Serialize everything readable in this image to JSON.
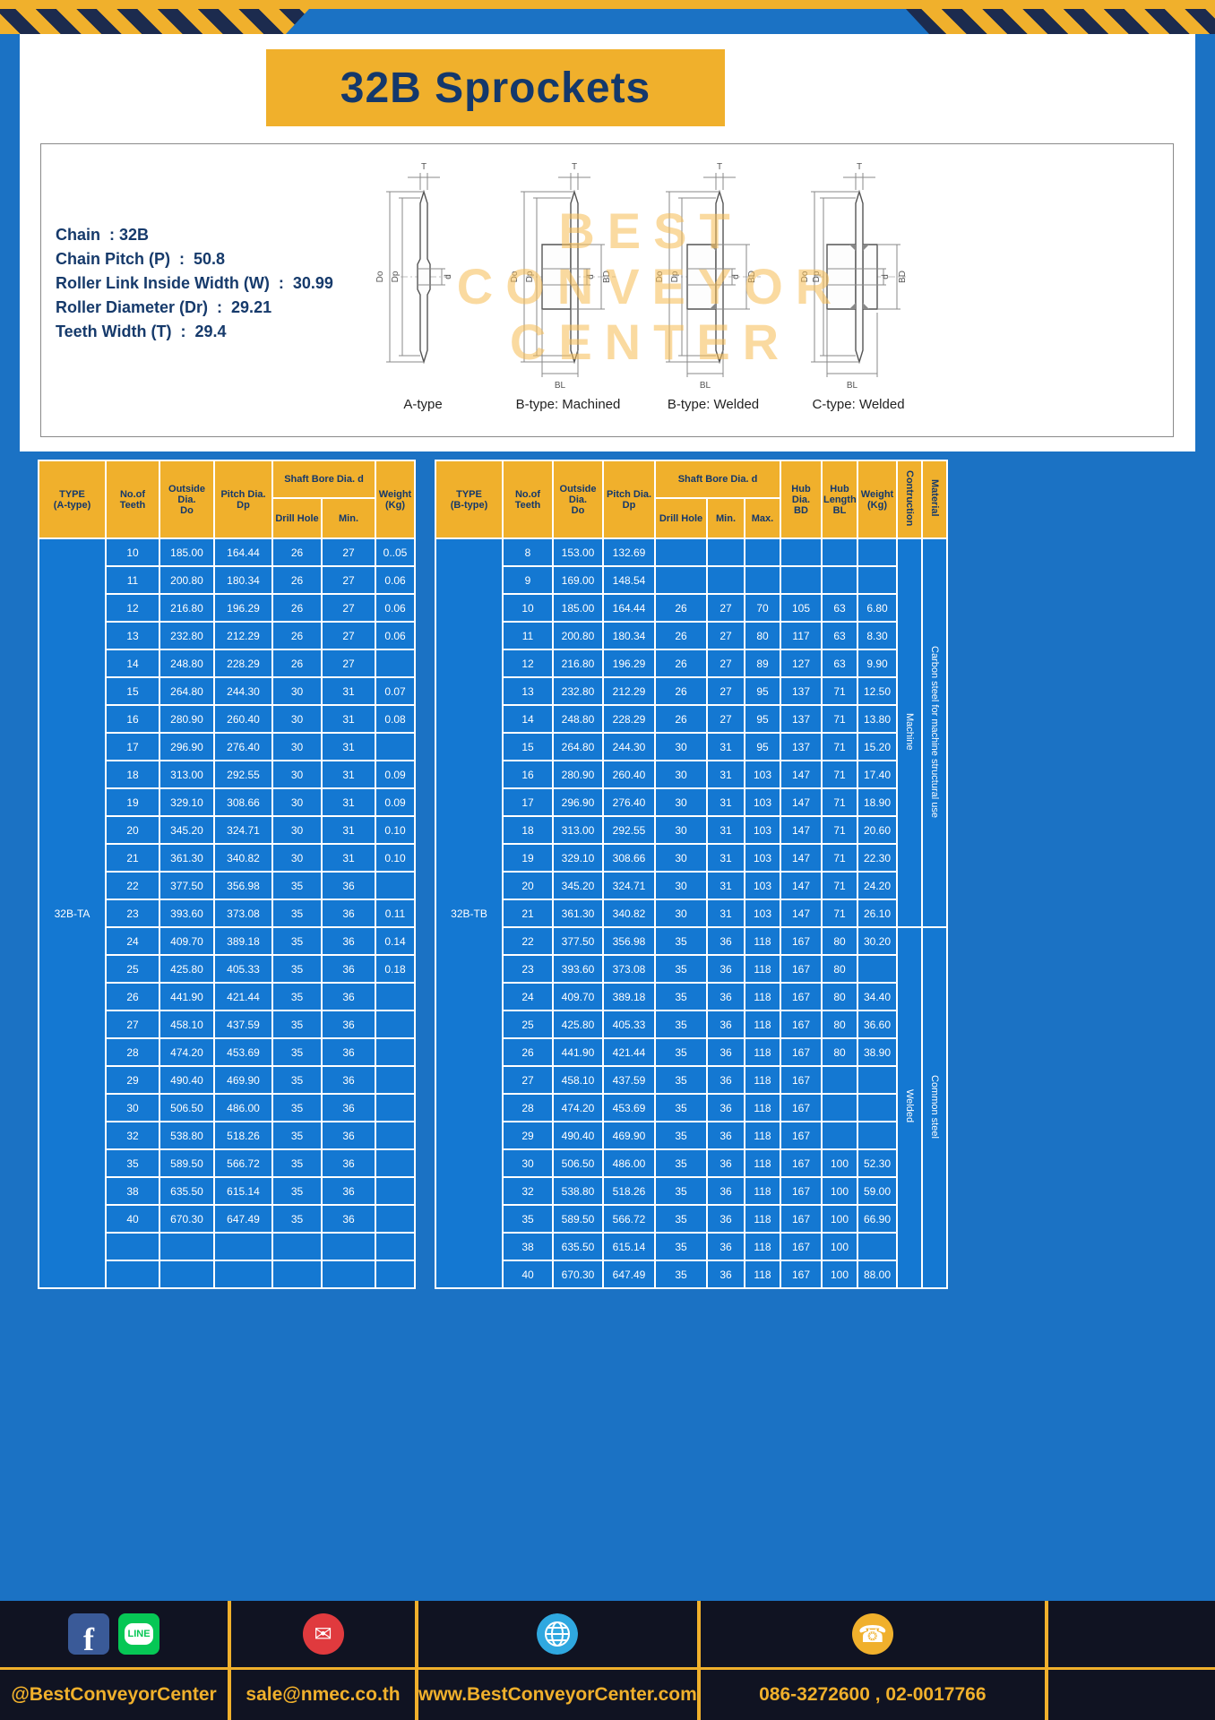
{
  "page": {
    "title": "32B Sprockets"
  },
  "specs": {
    "lines": [
      "Chain  : 32B",
      "Chain Pitch (P)  :  50.8",
      "Roller Link Inside Width (W)  :  30.99",
      "Roller Diameter (Dr)  :  29.21",
      "Teeth Width (T)  :  29.4"
    ]
  },
  "diagrams": {
    "labels": [
      "A-type",
      "B-type: Machined",
      "B-type: Welded",
      "C-type: Welded"
    ],
    "dim_labels": {
      "T": "T",
      "Do": "Do",
      "Dp": "Dp",
      "d": "d",
      "BD": "BD",
      "BL": "BL"
    },
    "watermark": "BEST\nCONVEYOR\nCENTER"
  },
  "table_a": {
    "type_label": "32B-TA",
    "headers": {
      "type": "TYPE\n(A-type)",
      "teeth": "No.of\nTeeth",
      "outside": "Outside\nDia.\nDo",
      "pitch": "Pitch Dia.\nDp",
      "shaft_bore": "Shaft Bore Dia. d",
      "drill_hole": "Drill Hole",
      "min": "Min.",
      "weight": "Weight\n(Kg)"
    },
    "rows": [
      [
        "10",
        "185.00",
        "164.44",
        "26",
        "27",
        "0..05"
      ],
      [
        "11",
        "200.80",
        "180.34",
        "26",
        "27",
        "0.06"
      ],
      [
        "12",
        "216.80",
        "196.29",
        "26",
        "27",
        "0.06"
      ],
      [
        "13",
        "232.80",
        "212.29",
        "26",
        "27",
        "0.06"
      ],
      [
        "14",
        "248.80",
        "228.29",
        "26",
        "27",
        ""
      ],
      [
        "15",
        "264.80",
        "244.30",
        "30",
        "31",
        "0.07"
      ],
      [
        "16",
        "280.90",
        "260.40",
        "30",
        "31",
        "0.08"
      ],
      [
        "17",
        "296.90",
        "276.40",
        "30",
        "31",
        ""
      ],
      [
        "18",
        "313.00",
        "292.55",
        "30",
        "31",
        "0.09"
      ],
      [
        "19",
        "329.10",
        "308.66",
        "30",
        "31",
        "0.09"
      ],
      [
        "20",
        "345.20",
        "324.71",
        "30",
        "31",
        "0.10"
      ],
      [
        "21",
        "361.30",
        "340.82",
        "30",
        "31",
        "0.10"
      ],
      [
        "22",
        "377.50",
        "356.98",
        "35",
        "36",
        ""
      ],
      [
        "23",
        "393.60",
        "373.08",
        "35",
        "36",
        "0.11"
      ],
      [
        "24",
        "409.70",
        "389.18",
        "35",
        "36",
        "0.14"
      ],
      [
        "25",
        "425.80",
        "405.33",
        "35",
        "36",
        "0.18"
      ],
      [
        "26",
        "441.90",
        "421.44",
        "35",
        "36",
        ""
      ],
      [
        "27",
        "458.10",
        "437.59",
        "35",
        "36",
        ""
      ],
      [
        "28",
        "474.20",
        "453.69",
        "35",
        "36",
        ""
      ],
      [
        "29",
        "490.40",
        "469.90",
        "35",
        "36",
        ""
      ],
      [
        "30",
        "506.50",
        "486.00",
        "35",
        "36",
        ""
      ],
      [
        "32",
        "538.80",
        "518.26",
        "35",
        "36",
        ""
      ],
      [
        "35",
        "589.50",
        "566.72",
        "35",
        "36",
        ""
      ],
      [
        "38",
        "635.50",
        "615.14",
        "35",
        "36",
        ""
      ],
      [
        "40",
        "670.30",
        "647.49",
        "35",
        "36",
        ""
      ],
      [
        "",
        "",
        "",
        "",
        "",
        ""
      ],
      [
        "",
        "",
        "",
        "",
        "",
        ""
      ]
    ]
  },
  "table_b": {
    "type_label": "32B-TB",
    "headers": {
      "type": "TYPE\n(B-type)",
      "teeth": "No.of\nTeeth",
      "outside": "Outside\nDia.\nDo",
      "pitch": "Pitch Dia.\nDp",
      "shaft_bore": "Shaft Bore Dia. d",
      "drill_hole": "Drill Hole",
      "min": "Min.",
      "max": "Max.",
      "hub_dia": "Hub Dia.\nBD",
      "hub_length": "Hub\nLength\nBL",
      "weight": "Weight\n(Kg)",
      "construction": "Contruction",
      "material": "Material"
    },
    "rows": [
      [
        "8",
        "153.00",
        "132.69",
        "",
        "",
        "",
        "",
        "",
        ""
      ],
      [
        "9",
        "169.00",
        "148.54",
        "",
        "",
        "",
        "",
        "",
        ""
      ],
      [
        "10",
        "185.00",
        "164.44",
        "26",
        "27",
        "70",
        "105",
        "63",
        "6.80"
      ],
      [
        "11",
        "200.80",
        "180.34",
        "26",
        "27",
        "80",
        "117",
        "63",
        "8.30"
      ],
      [
        "12",
        "216.80",
        "196.29",
        "26",
        "27",
        "89",
        "127",
        "63",
        "9.90"
      ],
      [
        "13",
        "232.80",
        "212.29",
        "26",
        "27",
        "95",
        "137",
        "71",
        "12.50"
      ],
      [
        "14",
        "248.80",
        "228.29",
        "26",
        "27",
        "95",
        "137",
        "71",
        "13.80"
      ],
      [
        "15",
        "264.80",
        "244.30",
        "30",
        "31",
        "95",
        "137",
        "71",
        "15.20"
      ],
      [
        "16",
        "280.90",
        "260.40",
        "30",
        "31",
        "103",
        "147",
        "71",
        "17.40"
      ],
      [
        "17",
        "296.90",
        "276.40",
        "30",
        "31",
        "103",
        "147",
        "71",
        "18.90"
      ],
      [
        "18",
        "313.00",
        "292.55",
        "30",
        "31",
        "103",
        "147",
        "71",
        "20.60"
      ],
      [
        "19",
        "329.10",
        "308.66",
        "30",
        "31",
        "103",
        "147",
        "71",
        "22.30"
      ],
      [
        "20",
        "345.20",
        "324.71",
        "30",
        "31",
        "103",
        "147",
        "71",
        "24.20"
      ],
      [
        "21",
        "361.30",
        "340.82",
        "30",
        "31",
        "103",
        "147",
        "71",
        "26.10"
      ],
      [
        "22",
        "377.50",
        "356.98",
        "35",
        "36",
        "118",
        "167",
        "80",
        "30.20"
      ],
      [
        "23",
        "393.60",
        "373.08",
        "35",
        "36",
        "118",
        "167",
        "80",
        ""
      ],
      [
        "24",
        "409.70",
        "389.18",
        "35",
        "36",
        "118",
        "167",
        "80",
        "34.40"
      ],
      [
        "25",
        "425.80",
        "405.33",
        "35",
        "36",
        "118",
        "167",
        "80",
        "36.60"
      ],
      [
        "26",
        "441.90",
        "421.44",
        "35",
        "36",
        "118",
        "167",
        "80",
        "38.90"
      ],
      [
        "27",
        "458.10",
        "437.59",
        "35",
        "36",
        "118",
        "167",
        "",
        ""
      ],
      [
        "28",
        "474.20",
        "453.69",
        "35",
        "36",
        "118",
        "167",
        "",
        ""
      ],
      [
        "29",
        "490.40",
        "469.90",
        "35",
        "36",
        "118",
        "167",
        "",
        ""
      ],
      [
        "30",
        "506.50",
        "486.00",
        "35",
        "36",
        "118",
        "167",
        "100",
        "52.30"
      ],
      [
        "32",
        "538.80",
        "518.26",
        "35",
        "36",
        "118",
        "167",
        "100",
        "59.00"
      ],
      [
        "35",
        "589.50",
        "566.72",
        "35",
        "36",
        "118",
        "167",
        "100",
        "66.90"
      ],
      [
        "38",
        "635.50",
        "615.14",
        "35",
        "36",
        "118",
        "167",
        "100",
        ""
      ],
      [
        "40",
        "670.30",
        "647.49",
        "35",
        "36",
        "118",
        "167",
        "100",
        "88.00"
      ]
    ],
    "construction": [
      {
        "text": "Machine",
        "span": 14
      },
      {
        "text": "Welded",
        "span": 13
      }
    ],
    "material": [
      {
        "text": "Carbon steel for machine structural use",
        "span": 14
      },
      {
        "text": "Common steel",
        "span": 13
      }
    ]
  },
  "footer": {
    "social_label": "@BestConveyorCenter",
    "email": "sale@nmec.co.th",
    "website": "www.BestConveyorCenter.com",
    "phone": "086-3272600 , 02-0017766",
    "icons": {
      "facebook": "f",
      "line": "LINE",
      "email": "✉",
      "phone": "☎"
    }
  }
}
